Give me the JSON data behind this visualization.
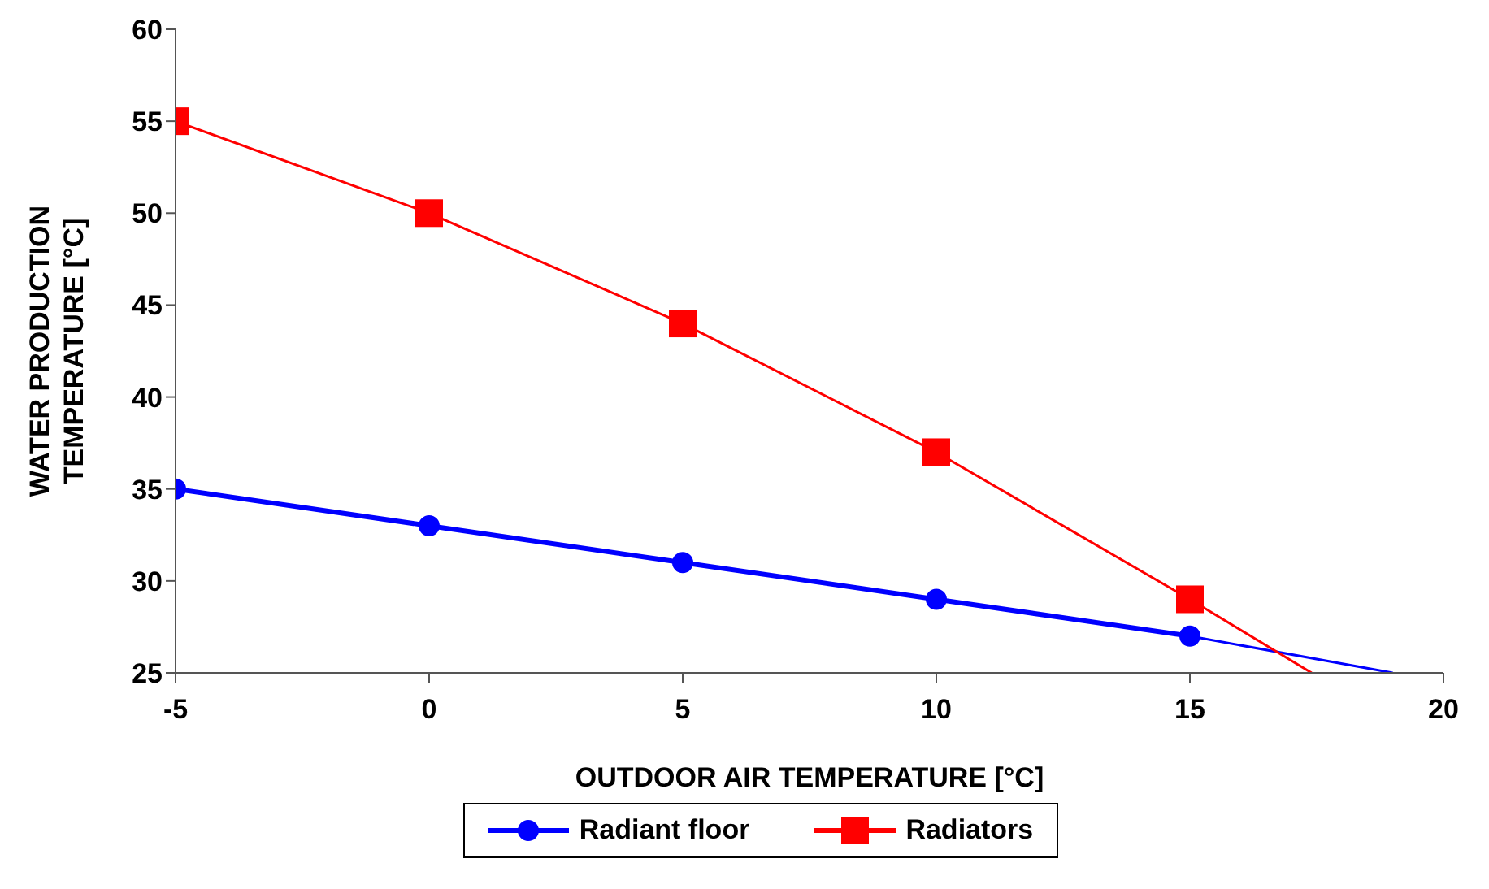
{
  "chart_data": {
    "type": "line",
    "xlabel": "OUTDOOR AIR TEMPERATURE [°C]",
    "ylabel": "WATER PRODUCTION TEMPERATURE [°C]",
    "xlim": [
      -5,
      20
    ],
    "xticks": [
      -5,
      0,
      5,
      10,
      15,
      20
    ],
    "ylim": [
      25,
      60
    ],
    "yticks": [
      25,
      30,
      35,
      40,
      45,
      50,
      55,
      60
    ],
    "grid": false,
    "legend": "bottom",
    "series": [
      {
        "name": "Radiant floor",
        "color": "#0000ff",
        "x": [
          -5,
          0,
          5,
          10,
          15
        ],
        "values": [
          35,
          33,
          31,
          29,
          27
        ],
        "marker": "circle"
      },
      {
        "name": "Radiators",
        "color": "#ff0000",
        "x": [
          -5,
          0,
          5,
          10,
          15
        ],
        "values": [
          55,
          50,
          44,
          37,
          29
        ],
        "marker": "square"
      },
      {
        "color": "#0000ff",
        "x": [
          15,
          19
        ],
        "values": [
          27,
          25
        ],
        "marker": "none"
      },
      {
        "color": "#ff0000",
        "x": [
          15,
          17.4
        ],
        "values": [
          29,
          25
        ],
        "marker": "none"
      }
    ]
  }
}
